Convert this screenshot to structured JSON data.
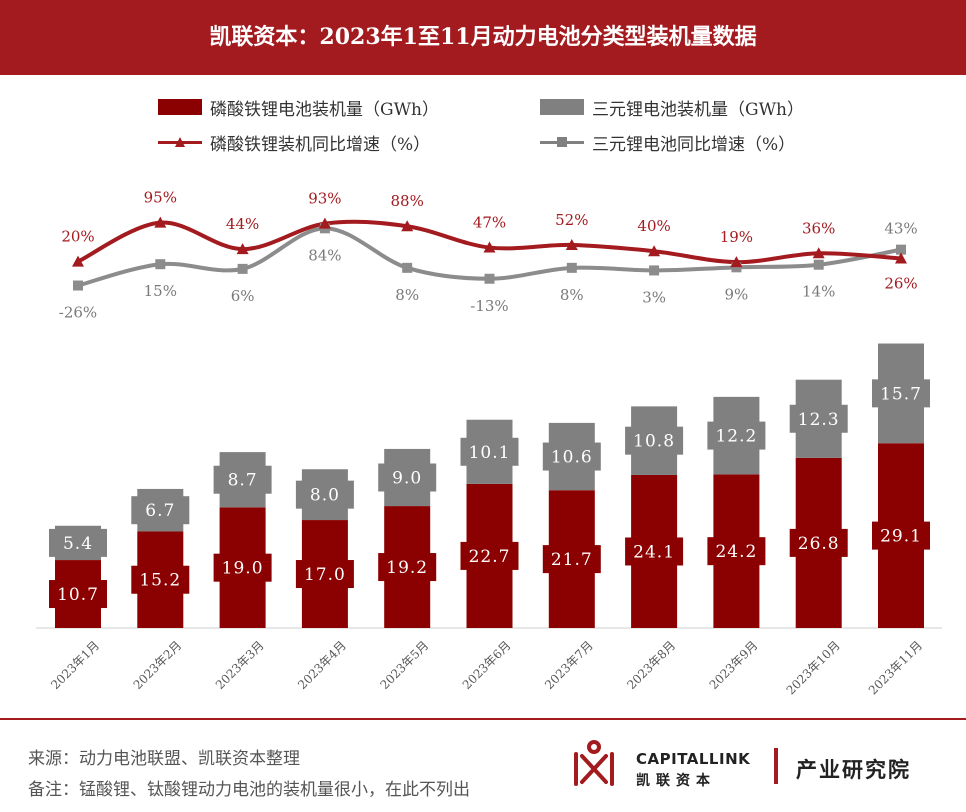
{
  "header": {
    "title": "凯联资本：2023年1至11月动力电池分类型装机量数据"
  },
  "legend": {
    "lfp_bar": "磷酸铁锂电池装机量（GWh）",
    "ternary_bar": "三元锂电池装机量（GWh）",
    "lfp_line": "磷酸铁锂装机同比增速（%）",
    "ternary_line": "三元锂电池同比增速（%）"
  },
  "colors": {
    "lfp": "#8b0000",
    "ternary": "#808080",
    "header": "#a31a1f"
  },
  "chart_data": {
    "type": "bar",
    "stacked": true,
    "categories": [
      "2023年1月",
      "2023年2月",
      "2023年3月",
      "2023年4月",
      "2023年5月",
      "2023年6月",
      "2023年7月",
      "2023年8月",
      "2023年9月",
      "2023年10月",
      "2023年11月"
    ],
    "series": [
      {
        "name": "磷酸铁锂电池装机量（GWh）",
        "type": "bar",
        "values": [
          10.7,
          15.2,
          19.0,
          17.0,
          19.2,
          22.7,
          21.7,
          24.1,
          24.2,
          26.8,
          29.1
        ]
      },
      {
        "name": "三元锂电池装机量（GWh）",
        "type": "bar",
        "values": [
          5.4,
          6.7,
          8.7,
          8.0,
          9.0,
          10.1,
          10.6,
          10.8,
          12.2,
          12.3,
          15.7
        ]
      },
      {
        "name": "磷酸铁锂装机同比增速（%）",
        "type": "line",
        "values": [
          20,
          95,
          44,
          93,
          88,
          47,
          52,
          40,
          19,
          36,
          26
        ]
      },
      {
        "name": "三元锂电池同比增速（%）",
        "type": "line",
        "values": [
          -26,
          15,
          6,
          84,
          8,
          -13,
          8,
          3,
          9,
          14,
          43
        ]
      }
    ],
    "bar_labels": {
      "lfp": [
        "10.7",
        "15.2",
        "19.0",
        "17.0",
        "19.2",
        "22.7",
        "21.7",
        "24.1",
        "24.2",
        "26.8",
        "29.1"
      ],
      "ternary": [
        "5.4",
        "6.7",
        "8.7",
        "8.0",
        "9.0",
        "10.1",
        "10.6",
        "10.8",
        "12.2",
        "12.3",
        "15.7"
      ]
    },
    "line_labels": {
      "lfp": [
        "20%",
        "95%",
        "44%",
        "93%",
        "88%",
        "47%",
        "52%",
        "40%",
        "19%",
        "36%",
        "26%"
      ],
      "ternary": [
        "-26%",
        "15%",
        "6%",
        "84%",
        "8%",
        "-13%",
        "8%",
        "3%",
        "9%",
        "14%",
        "43%"
      ]
    },
    "legend_position": "top"
  },
  "footer": {
    "source": "来源：动力电池联盟、凯联资本整理",
    "note": "备注：锰酸锂、钛酸锂动力电池的装机量很小，在此不列出",
    "brand_en": "CAPITALLINK",
    "brand_cn": "凯联资本",
    "institute": "产业研究院"
  }
}
